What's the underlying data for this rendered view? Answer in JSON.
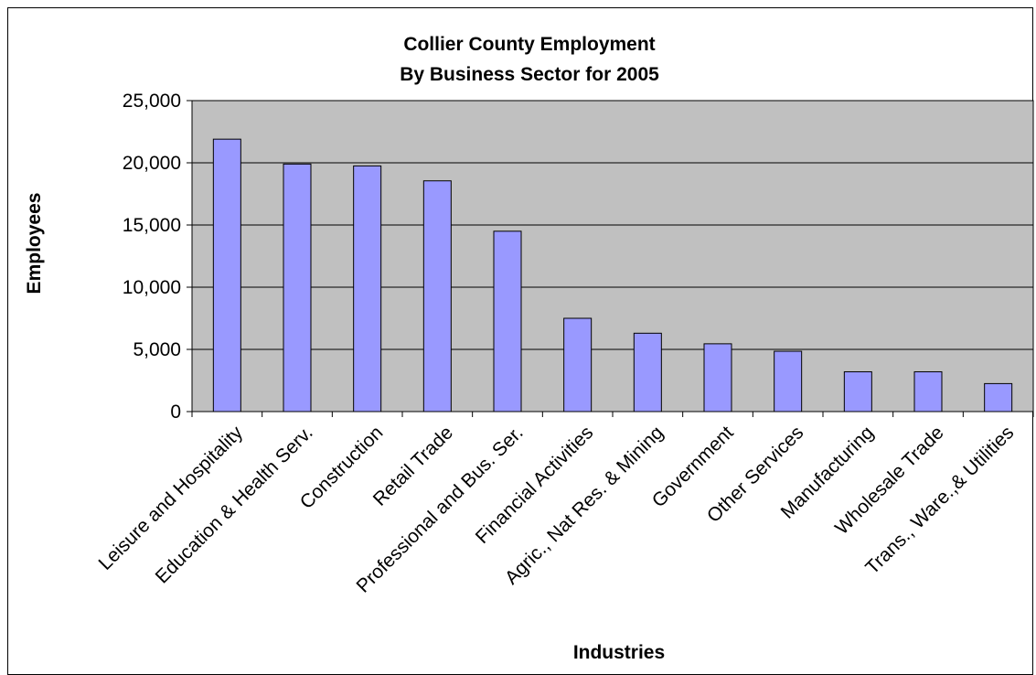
{
  "chart_data": {
    "type": "bar",
    "title_line1": "Collier County Employment",
    "title_line2": "By Business Sector for 2005",
    "xlabel": "Industries",
    "ylabel": "Employees",
    "ylim": [
      0,
      25000
    ],
    "yticks": [
      0,
      5000,
      10000,
      15000,
      20000,
      25000
    ],
    "ytick_labels": [
      "0",
      "5,000",
      "10,000",
      "15,000",
      "20,000",
      "25,000"
    ],
    "grid": true,
    "categories": [
      "Leisure and Hospitality",
      "Education & Health Serv.",
      "Construction",
      "Retail Trade",
      "Professional and Bus. Ser.",
      "Financial Activities",
      "Agric., Nat Res. & Mining",
      "Government",
      "Other Services",
      "Manufacturing",
      "Wholesale Trade",
      "Trans., Ware.,& Utilities"
    ],
    "values": [
      21900,
      19900,
      19750,
      18550,
      14500,
      7500,
      6300,
      5450,
      4850,
      3200,
      3200,
      2250
    ],
    "colors": {
      "plot_background": "#c0c0c0",
      "bar_fill": "#9999ff",
      "bar_stroke": "#000000",
      "grid": "#000000"
    }
  }
}
